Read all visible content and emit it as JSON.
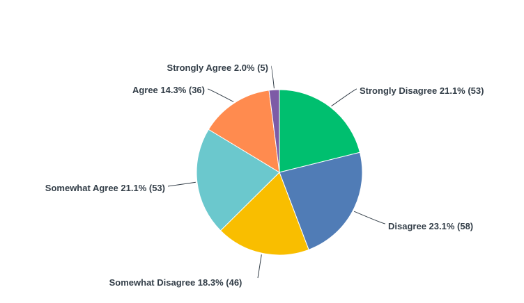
{
  "chart_data": {
    "type": "pie",
    "start": "top",
    "direction": "clockwise",
    "slices": [
      {
        "label": "Strongly Disagree",
        "percent": 21.1,
        "count": 53,
        "color": "#00bf6f",
        "text": "Strongly Disagree 21.1% (53)"
      },
      {
        "label": "Disagree",
        "percent": 23.1,
        "count": 58,
        "color": "#507cb6",
        "text": "Disagree 23.1% (58)"
      },
      {
        "label": "Somewhat Disagree",
        "percent": 18.3,
        "count": 46,
        "color": "#f9be00",
        "text": "Somewhat Disagree 18.3% (46)"
      },
      {
        "label": "Somewhat Agree",
        "percent": 21.1,
        "count": 53,
        "color": "#6bc8cd",
        "text": "Somewhat Agree 21.1% (53)"
      },
      {
        "label": "Agree",
        "percent": 14.3,
        "count": 36,
        "color": "#ff8b4f",
        "text": "Agree 14.3% (36)"
      },
      {
        "label": "Strongly Agree",
        "percent": 2.0,
        "count": 5,
        "color": "#7d5ba6",
        "text": "Strongly Agree 2.0% (5)"
      }
    ]
  }
}
